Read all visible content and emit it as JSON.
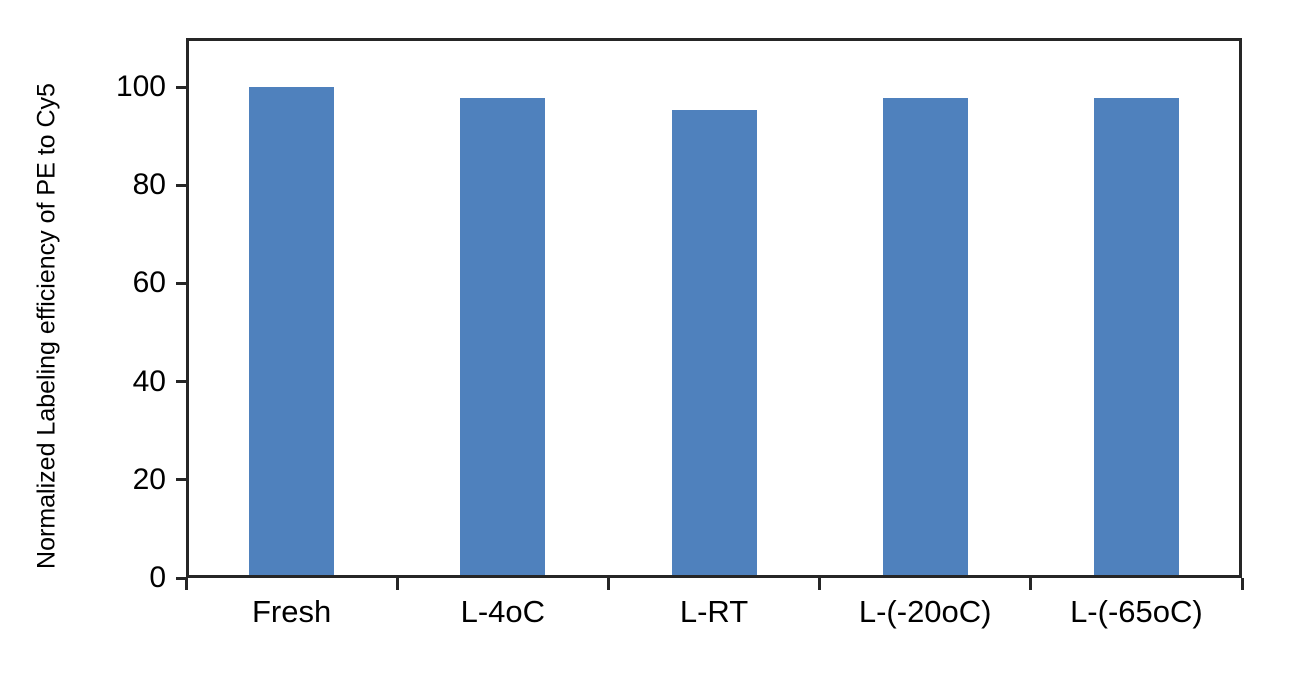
{
  "chart_data": {
    "type": "bar",
    "categories": [
      "Fresh",
      "L-4oC",
      "L-RT",
      "L-(-20oC)",
      "L-(-65oC)"
    ],
    "values": [
      100,
      97.8,
      95.4,
      97.8,
      97.8
    ],
    "title": "",
    "xlabel": "",
    "ylabel": "Normalized Labeling efficiency of PE to Cy5",
    "ylim": [
      0,
      110
    ],
    "yticks": [
      0,
      20,
      40,
      60,
      80,
      100
    ],
    "grid": false,
    "legend": false,
    "colors": {
      "bar": "#4F81BD",
      "axis": "#262626",
      "text": "#000000",
      "background": "#FFFFFF"
    }
  }
}
